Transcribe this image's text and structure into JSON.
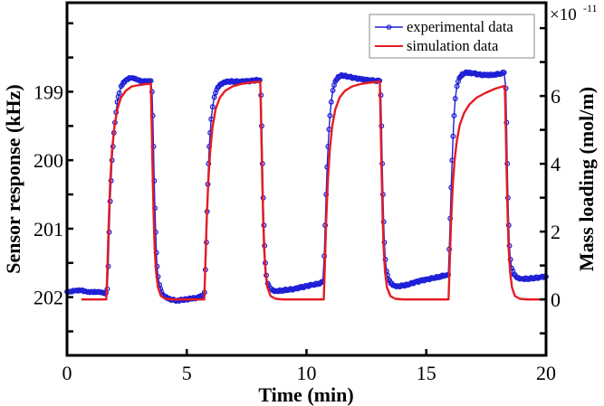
{
  "chart_data": {
    "type": "line",
    "title": "",
    "xlabel": "Time (min)",
    "ylabel": "Sensor response (kHz)",
    "y2label": "Mass loading (mol/m)",
    "y2_multiplier_label": {
      "base": "×10",
      "exponent": "-11"
    },
    "xlim": [
      0,
      20
    ],
    "ylim": [
      197.7,
      202.85
    ],
    "y_inverted": true,
    "y2lim": [
      -1.65,
      8.75
    ],
    "xticks": [
      0,
      5,
      10,
      15,
      20
    ],
    "xtick_labels": [
      "0",
      "5",
      "10",
      "15",
      "20"
    ],
    "yticks": [
      199,
      200,
      201,
      202
    ],
    "ytick_labels": [
      "199",
      "200",
      "201",
      "202"
    ],
    "yminor_ticks": [
      198,
      198.5,
      199.5,
      200.5,
      201.5,
      202.5
    ],
    "y2ticks": [
      0,
      2,
      4,
      6
    ],
    "y2tick_labels": [
      "0",
      "2",
      "4",
      "6"
    ],
    "y2minor_ticks": [
      -1,
      1,
      3,
      5,
      7,
      8
    ],
    "grid": false,
    "legend_position": "top-right",
    "series": [
      {
        "name": "experimental data",
        "axis": "left",
        "color": "#1f1fd6",
        "marker": "open-circle",
        "points": [
          [
            0.0,
            201.92
          ],
          [
            0.15,
            201.92
          ],
          [
            0.3,
            201.91
          ],
          [
            0.45,
            201.91
          ],
          [
            0.6,
            201.9
          ],
          [
            0.75,
            201.91
          ],
          [
            0.9,
            201.92
          ],
          [
            1.05,
            201.92
          ],
          [
            1.2,
            201.93
          ],
          [
            1.35,
            201.93
          ],
          [
            1.5,
            201.94
          ],
          [
            1.62,
            201.94
          ],
          [
            1.68,
            201.88
          ],
          [
            1.72,
            201.55
          ],
          [
            1.76,
            201.05
          ],
          [
            1.8,
            200.6
          ],
          [
            1.84,
            200.3
          ],
          [
            1.88,
            200.0
          ],
          [
            1.92,
            199.8
          ],
          [
            1.96,
            199.6
          ],
          [
            2.0,
            199.45
          ],
          [
            2.05,
            199.3
          ],
          [
            2.1,
            199.15
          ],
          [
            2.18,
            199.02
          ],
          [
            2.26,
            198.92
          ],
          [
            2.36,
            198.86
          ],
          [
            2.5,
            198.82
          ],
          [
            2.65,
            198.8
          ],
          [
            2.8,
            198.81
          ],
          [
            2.95,
            198.83
          ],
          [
            3.1,
            198.84
          ],
          [
            3.25,
            198.84
          ],
          [
            3.4,
            198.84
          ],
          [
            3.5,
            198.84
          ],
          [
            3.55,
            199.0
          ],
          [
            3.58,
            199.35
          ],
          [
            3.61,
            199.8
          ],
          [
            3.64,
            200.3
          ],
          [
            3.67,
            200.7
          ],
          [
            3.7,
            201.05
          ],
          [
            3.73,
            201.35
          ],
          [
            3.76,
            201.55
          ],
          [
            3.8,
            201.7
          ],
          [
            3.86,
            201.82
          ],
          [
            3.94,
            201.92
          ],
          [
            4.05,
            201.98
          ],
          [
            4.2,
            202.02
          ],
          [
            4.4,
            202.04
          ],
          [
            4.6,
            202.05
          ],
          [
            4.8,
            202.04
          ],
          [
            5.0,
            202.03
          ],
          [
            5.2,
            202.02
          ],
          [
            5.4,
            202.01
          ],
          [
            5.55,
            202.0
          ],
          [
            5.68,
            201.97
          ],
          [
            5.74,
            201.93
          ],
          [
            5.78,
            201.6
          ],
          [
            5.82,
            201.2
          ],
          [
            5.85,
            200.75
          ],
          [
            5.88,
            200.35
          ],
          [
            5.91,
            200.05
          ],
          [
            5.94,
            199.8
          ],
          [
            5.98,
            199.6
          ],
          [
            6.02,
            199.4
          ],
          [
            6.08,
            199.22
          ],
          [
            6.15,
            199.08
          ],
          [
            6.25,
            198.97
          ],
          [
            6.38,
            198.9
          ],
          [
            6.55,
            198.86
          ],
          [
            6.75,
            198.85
          ],
          [
            7.0,
            198.85
          ],
          [
            7.25,
            198.85
          ],
          [
            7.5,
            198.85
          ],
          [
            7.75,
            198.84
          ],
          [
            7.95,
            198.83
          ],
          [
            8.05,
            198.83
          ],
          [
            8.1,
            199.05
          ],
          [
            8.13,
            199.5
          ],
          [
            8.16,
            200.05
          ],
          [
            8.19,
            200.55
          ],
          [
            8.22,
            200.95
          ],
          [
            8.25,
            201.25
          ],
          [
            8.28,
            201.5
          ],
          [
            8.32,
            201.68
          ],
          [
            8.38,
            201.8
          ],
          [
            8.46,
            201.87
          ],
          [
            8.58,
            201.9
          ],
          [
            8.75,
            201.91
          ],
          [
            9.0,
            201.9
          ],
          [
            9.25,
            201.89
          ],
          [
            9.5,
            201.88
          ],
          [
            9.75,
            201.86
          ],
          [
            10.0,
            201.84
          ],
          [
            10.25,
            201.82
          ],
          [
            10.5,
            201.8
          ],
          [
            10.68,
            201.78
          ],
          [
            10.74,
            201.4
          ],
          [
            10.78,
            200.95
          ],
          [
            10.82,
            200.5
          ],
          [
            10.86,
            200.1
          ],
          [
            10.9,
            199.8
          ],
          [
            10.94,
            199.55
          ],
          [
            10.98,
            199.35
          ],
          [
            11.03,
            199.15
          ],
          [
            11.1,
            198.98
          ],
          [
            11.2,
            198.85
          ],
          [
            11.32,
            198.78
          ],
          [
            11.5,
            198.76
          ],
          [
            11.75,
            198.78
          ],
          [
            12.0,
            198.8
          ],
          [
            12.3,
            198.82
          ],
          [
            12.6,
            198.83
          ],
          [
            12.85,
            198.84
          ],
          [
            13.05,
            198.84
          ],
          [
            13.1,
            199.05
          ],
          [
            13.13,
            199.5
          ],
          [
            13.16,
            200.05
          ],
          [
            13.19,
            200.5
          ],
          [
            13.22,
            200.9
          ],
          [
            13.25,
            201.2
          ],
          [
            13.29,
            201.45
          ],
          [
            13.34,
            201.62
          ],
          [
            13.42,
            201.74
          ],
          [
            13.52,
            201.8
          ],
          [
            13.65,
            201.83
          ],
          [
            13.85,
            201.84
          ],
          [
            14.05,
            201.83
          ],
          [
            14.3,
            201.81
          ],
          [
            14.55,
            201.78
          ],
          [
            14.8,
            201.76
          ],
          [
            15.05,
            201.74
          ],
          [
            15.3,
            201.72
          ],
          [
            15.55,
            201.7
          ],
          [
            15.8,
            201.68
          ],
          [
            15.92,
            201.67
          ],
          [
            15.96,
            201.3
          ],
          [
            16.0,
            200.85
          ],
          [
            16.04,
            200.4
          ],
          [
            16.08,
            200.0
          ],
          [
            16.12,
            199.65
          ],
          [
            16.16,
            199.35
          ],
          [
            16.21,
            199.1
          ],
          [
            16.28,
            198.92
          ],
          [
            16.38,
            198.8
          ],
          [
            16.5,
            198.74
          ],
          [
            16.7,
            198.72
          ],
          [
            16.95,
            198.73
          ],
          [
            17.2,
            198.75
          ],
          [
            17.5,
            198.76
          ],
          [
            17.8,
            198.75
          ],
          [
            18.05,
            198.74
          ],
          [
            18.25,
            198.72
          ],
          [
            18.32,
            198.95
          ],
          [
            18.35,
            199.45
          ],
          [
            18.38,
            200.05
          ],
          [
            18.41,
            200.55
          ],
          [
            18.44,
            200.95
          ],
          [
            18.47,
            201.25
          ],
          [
            18.51,
            201.45
          ],
          [
            18.57,
            201.58
          ],
          [
            18.66,
            201.67
          ],
          [
            18.8,
            201.72
          ],
          [
            19.0,
            201.73
          ],
          [
            19.25,
            201.73
          ],
          [
            19.5,
            201.72
          ],
          [
            19.75,
            201.71
          ],
          [
            20.0,
            201.7
          ]
        ]
      },
      {
        "name": "simulation data",
        "axis": "right",
        "color": "#e51c23",
        "marker": "none",
        "points": [
          [
            0.6,
            0.0
          ],
          [
            1.64,
            0.0
          ],
          [
            1.68,
            0.8
          ],
          [
            1.74,
            2.2
          ],
          [
            1.8,
            3.4
          ],
          [
            1.88,
            4.4
          ],
          [
            1.98,
            5.1
          ],
          [
            2.1,
            5.6
          ],
          [
            2.25,
            5.95
          ],
          [
            2.45,
            6.15
          ],
          [
            2.7,
            6.28
          ],
          [
            3.0,
            6.32
          ],
          [
            3.3,
            6.35
          ],
          [
            3.5,
            6.36
          ],
          [
            3.54,
            5.0
          ],
          [
            3.58,
            3.6
          ],
          [
            3.62,
            2.4
          ],
          [
            3.66,
            1.5
          ],
          [
            3.72,
            0.8
          ],
          [
            3.8,
            0.35
          ],
          [
            3.92,
            0.1
          ],
          [
            4.1,
            0.02
          ],
          [
            4.4,
            0.0
          ],
          [
            5.73,
            0.0
          ],
          [
            5.77,
            0.9
          ],
          [
            5.83,
            2.3
          ],
          [
            5.9,
            3.5
          ],
          [
            5.98,
            4.4
          ],
          [
            6.08,
            5.1
          ],
          [
            6.2,
            5.6
          ],
          [
            6.38,
            5.95
          ],
          [
            6.6,
            6.15
          ],
          [
            6.9,
            6.28
          ],
          [
            7.3,
            6.36
          ],
          [
            7.7,
            6.4
          ],
          [
            8.07,
            6.42
          ],
          [
            8.11,
            5.0
          ],
          [
            8.15,
            3.6
          ],
          [
            8.19,
            2.4
          ],
          [
            8.23,
            1.5
          ],
          [
            8.29,
            0.8
          ],
          [
            8.37,
            0.35
          ],
          [
            8.5,
            0.1
          ],
          [
            8.7,
            0.02
          ],
          [
            9.0,
            0.0
          ],
          [
            10.72,
            0.0
          ],
          [
            10.76,
            0.9
          ],
          [
            10.82,
            2.3
          ],
          [
            10.89,
            3.5
          ],
          [
            10.97,
            4.4
          ],
          [
            11.07,
            5.1
          ],
          [
            11.2,
            5.6
          ],
          [
            11.38,
            5.95
          ],
          [
            11.6,
            6.15
          ],
          [
            11.9,
            6.28
          ],
          [
            12.3,
            6.36
          ],
          [
            12.7,
            6.4
          ],
          [
            13.06,
            6.42
          ],
          [
            13.1,
            5.0
          ],
          [
            13.14,
            3.6
          ],
          [
            13.18,
            2.4
          ],
          [
            13.22,
            1.5
          ],
          [
            13.28,
            0.8
          ],
          [
            13.36,
            0.35
          ],
          [
            13.5,
            0.1
          ],
          [
            13.7,
            0.02
          ],
          [
            14.0,
            0.0
          ],
          [
            15.93,
            0.0
          ],
          [
            15.97,
            0.9
          ],
          [
            16.03,
            2.2
          ],
          [
            16.1,
            3.3
          ],
          [
            16.18,
            4.1
          ],
          [
            16.28,
            4.7
          ],
          [
            16.4,
            5.15
          ],
          [
            16.58,
            5.5
          ],
          [
            16.8,
            5.75
          ],
          [
            17.1,
            5.95
          ],
          [
            17.5,
            6.1
          ],
          [
            17.9,
            6.22
          ],
          [
            18.28,
            6.3
          ],
          [
            18.32,
            5.0
          ],
          [
            18.36,
            3.6
          ],
          [
            18.4,
            2.4
          ],
          [
            18.44,
            1.5
          ],
          [
            18.5,
            0.8
          ],
          [
            18.58,
            0.35
          ],
          [
            18.7,
            0.1
          ],
          [
            18.9,
            0.02
          ],
          [
            19.2,
            0.0
          ],
          [
            20.0,
            0.0
          ]
        ]
      }
    ]
  }
}
